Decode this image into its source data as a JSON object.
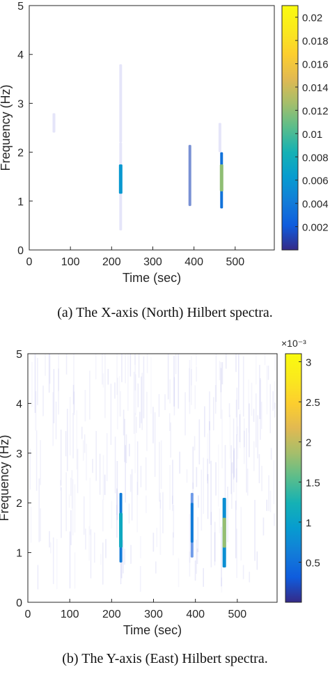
{
  "chart_data": [
    {
      "type": "heatmap",
      "title": "",
      "xlabel": "Time (sec)",
      "ylabel": "Frequency (Hz)",
      "xlim": [
        0,
        595
      ],
      "ylim": [
        0,
        5
      ],
      "x_ticks": [
        "0",
        "100",
        "200",
        "300",
        "400",
        "500"
      ],
      "y_ticks": [
        "0",
        "1",
        "2",
        "3",
        "4",
        "5"
      ],
      "colorbar": {
        "range": [
          0,
          0.021
        ],
        "ticks": [
          "0.002",
          "0.004",
          "0.006",
          "0.008",
          "0.01",
          "0.012",
          "0.014",
          "0.016",
          "0.018",
          "0.02"
        ],
        "exponent_label": ""
      },
      "colormap": "parula",
      "hotspots": [
        {
          "time": 222,
          "freq_low": 1.15,
          "freq_high": 1.75,
          "value": 0.006
        },
        {
          "time": 222,
          "freq_low": 0.4,
          "freq_high": 2.2,
          "value": 0.0008
        },
        {
          "time": 222,
          "freq_low": 2.2,
          "freq_high": 3.8,
          "value": 0.0003
        },
        {
          "time": 390,
          "freq_low": 0.9,
          "freq_high": 2.15,
          "value": 0.0012
        },
        {
          "time": 467,
          "freq_low": 1.2,
          "freq_high": 1.75,
          "value": 0.012
        },
        {
          "time": 467,
          "freq_low": 0.85,
          "freq_high": 2.0,
          "value": 0.0035
        },
        {
          "time": 463,
          "freq_low": 2.0,
          "freq_high": 2.6,
          "value": 0.0004
        },
        {
          "time": 60,
          "freq_low": 2.4,
          "freq_high": 2.8,
          "value": 0.0002
        }
      ]
    },
    {
      "type": "heatmap",
      "title": "",
      "xlabel": "Time (sec)",
      "ylabel": "Frequency (Hz)",
      "xlim": [
        0,
        595
      ],
      "ylim": [
        0,
        5
      ],
      "x_ticks": [
        "0",
        "100",
        "200",
        "300",
        "400",
        "500"
      ],
      "y_ticks": [
        "0",
        "1",
        "2",
        "3",
        "4",
        "5"
      ],
      "colorbar": {
        "range": [
          0,
          0.0031
        ],
        "ticks": [
          "0.5",
          "1",
          "1.5",
          "2",
          "2.5",
          "3"
        ],
        "exponent_label": "×10⁻³"
      },
      "colormap": "parula",
      "hotspots": [
        {
          "time": 222,
          "freq_low": 1.1,
          "freq_high": 1.8,
          "value": 0.0011
        },
        {
          "time": 222,
          "freq_low": 0.8,
          "freq_high": 2.2,
          "value": 0.0006
        },
        {
          "time": 392,
          "freq_low": 1.2,
          "freq_high": 2.0,
          "value": 0.0006
        },
        {
          "time": 392,
          "freq_low": 0.9,
          "freq_high": 2.2,
          "value": 0.0003
        },
        {
          "time": 469,
          "freq_low": 1.1,
          "freq_high": 1.7,
          "value": 0.0018
        },
        {
          "time": 469,
          "freq_low": 0.7,
          "freq_high": 2.1,
          "value": 0.0008
        }
      ],
      "background_noise": true
    }
  ],
  "captions": [
    "(a)  The X-axis (North) Hilbert spectra.",
    "(b)  The Y-axis (East) Hilbert spectra."
  ]
}
